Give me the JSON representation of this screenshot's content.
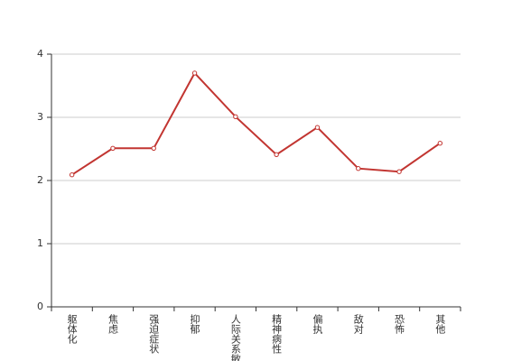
{
  "chart_data": {
    "type": "line",
    "categories": [
      "躯体化",
      "焦虑",
      "强迫症状",
      "抑郁",
      "人际关系敏感",
      "精神病性",
      "偏执",
      "敌对",
      "恐怖",
      "其他"
    ],
    "values": [
      2.09,
      2.51,
      2.51,
      3.7,
      3.01,
      2.41,
      2.84,
      2.19,
      2.14,
      2.59
    ],
    "color": "#c23531",
    "ylim": [
      0,
      4
    ],
    "yticks": [
      0,
      1,
      2,
      3,
      4
    ],
    "grid": true
  }
}
